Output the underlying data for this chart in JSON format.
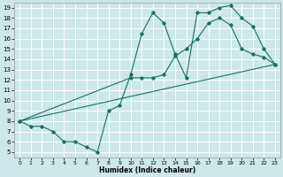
{
  "xlabel": "Humidex (Indice chaleur)",
  "bg_color": "#cce8e8",
  "grid_color": "#ffffff",
  "line_color": "#1a7060",
  "xlim": [
    0,
    23
  ],
  "ylim": [
    5,
    19
  ],
  "xticks": [
    0,
    1,
    2,
    3,
    4,
    5,
    6,
    7,
    8,
    9,
    10,
    11,
    12,
    13,
    14,
    15,
    16,
    17,
    18,
    19,
    20,
    21,
    22,
    23
  ],
  "yticks": [
    5,
    6,
    7,
    8,
    9,
    10,
    11,
    12,
    13,
    14,
    15,
    16,
    17,
    18,
    19
  ],
  "line1_x": [
    0,
    1,
    2,
    3,
    4,
    5,
    6,
    7,
    8,
    9,
    10,
    11,
    12,
    13,
    14,
    15,
    16,
    17,
    18,
    19,
    20,
    21,
    22,
    23
  ],
  "line1_y": [
    8.0,
    7.5,
    7.5,
    7.0,
    6.0,
    6.0,
    5.5,
    5.0,
    9.0,
    9.5,
    12.5,
    16.5,
    18.5,
    17.5,
    14.5,
    12.2,
    18.5,
    18.5,
    19.0,
    19.2,
    18.0,
    17.2,
    15.0,
    13.5
  ],
  "line2_x": [
    0,
    10,
    11,
    12,
    13,
    14,
    15,
    16,
    17,
    18,
    19,
    20,
    21,
    22,
    23
  ],
  "line2_y": [
    8.0,
    12.2,
    12.2,
    12.2,
    12.5,
    14.3,
    15.0,
    16.0,
    17.5,
    18.0,
    17.3,
    15.0,
    14.5,
    14.2,
    13.5
  ],
  "line3_x": [
    0,
    23
  ],
  "line3_y": [
    8.0,
    13.5
  ]
}
